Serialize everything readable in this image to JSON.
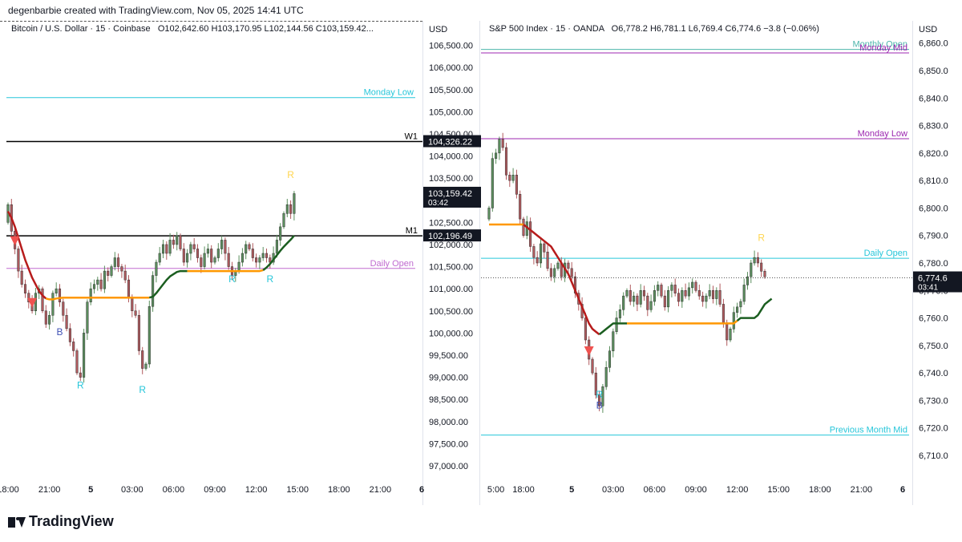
{
  "header": {
    "created_by": "degenbarbie created with TradingView.com, Nov 05, 2025 14:41 UTC"
  },
  "footer": {
    "brand": "TradingView"
  },
  "chart_data": [
    {
      "type": "candlestick",
      "title": "Bitcoin / U.S. Dollar · 15 · Coinbase",
      "ohlc_label": "O102,642.60 H103,170.95 L102,144.56 C103,159.42...",
      "currency": "USD",
      "ylim": [
        96800,
        106800
      ],
      "y_ticks": [
        97000,
        97500,
        98000,
        98500,
        99000,
        99500,
        100000,
        100500,
        101000,
        101500,
        102000,
        102500,
        103000,
        103500,
        104000,
        104500,
        105000,
        105500,
        106000,
        106500
      ],
      "y_tick_labels": [
        "97,000.00",
        "97,500.00",
        "98,000.00",
        "98,500.00",
        "99,000.00",
        "99,500.00",
        "100,000.00",
        "100,500.00",
        "101,000.00",
        "101,500.00",
        "102,000.00",
        "102,500.00",
        "103,000.00",
        "103,500.00",
        "104,000.00",
        "104,500.00",
        "105,000.00",
        "105,500.00",
        "106,000.00",
        "106,500.00"
      ],
      "x_labels": [
        "18:00",
        "21:00",
        "5",
        "03:00",
        "06:00",
        "09:00",
        "12:00",
        "15:00",
        "18:00",
        "21:00",
        "6"
      ],
      "x_label_positions": [
        0,
        12,
        24,
        36,
        48,
        60,
        72,
        84,
        96,
        108,
        120
      ],
      "n_slots": 122,
      "candles_end_slot": 84,
      "levels": [
        {
          "name": "Monday Low",
          "value": 105320,
          "color": "#26c6da"
        },
        {
          "name": "W1",
          "value": 104326.22,
          "color": "#000000"
        },
        {
          "name": "M1",
          "value": 102196.49,
          "color": "#000000"
        },
        {
          "name": "Daily Open",
          "value": 101460,
          "color": "#c06bd0"
        }
      ],
      "price_badges": [
        {
          "label": "104,326.22",
          "value": 104326.22
        },
        {
          "label": "103,159.42",
          "sub": "03:42",
          "value": 103159.42
        },
        {
          "label": "102,196.49",
          "value": 102196.49
        }
      ],
      "closes": [
        102900,
        102300,
        101900,
        101400,
        101100,
        100900,
        100700,
        100500,
        100900,
        101000,
        100500,
        100200,
        100400,
        100900,
        101000,
        100700,
        100400,
        100100,
        99800,
        99600,
        99100,
        99000,
        100000,
        100700,
        101000,
        101100,
        101200,
        101000,
        101400,
        101300,
        101500,
        101700,
        101500,
        101400,
        101200,
        100800,
        100500,
        100400,
        99600,
        99200,
        99300,
        100600,
        101300,
        101600,
        101800,
        102000,
        101800,
        102100,
        102000,
        102200,
        101900,
        101600,
        101800,
        102000,
        101900,
        101700,
        101500,
        101800,
        101900,
        101600,
        101700,
        101900,
        102100,
        101800,
        101500,
        101300,
        101400,
        101600,
        101800,
        102000,
        101900,
        101700,
        101600,
        101700,
        101800,
        101700,
        101600,
        101800,
        102100,
        102400,
        102700,
        102900,
        102700,
        103150
      ],
      "open_first": 102500,
      "trend_line": [
        102750,
        102600,
        102400,
        102150,
        101900,
        101650,
        101450,
        101250,
        101100,
        100950,
        100850,
        100780,
        100760,
        100760,
        100780,
        100790,
        100800,
        100800,
        100800,
        100800,
        100800,
        100800,
        100800,
        100800,
        100800,
        100800,
        100800,
        100800,
        100800,
        100800,
        100800,
        100800,
        100800,
        100800,
        100800,
        100800,
        100800,
        100800,
        100800,
        100800,
        100800,
        100800,
        100820,
        100900,
        101000,
        101100,
        101200,
        101280,
        101330,
        101380,
        101400,
        101400,
        101400,
        101400,
        101400,
        101400,
        101400,
        101400,
        101400,
        101400,
        101400,
        101400,
        101400,
        101400,
        101400,
        101400,
        101400,
        101400,
        101400,
        101400,
        101400,
        101400,
        101400,
        101400,
        101420,
        101480,
        101560,
        101660,
        101760,
        101860,
        101950,
        102030,
        102110,
        102200
      ],
      "trend_colors": [
        [
          0,
          11,
          "#b71c1c"
        ],
        [
          11,
          41,
          "#ff9800"
        ],
        [
          41,
          52,
          "#1b5e20"
        ],
        [
          52,
          74,
          "#ff9800"
        ],
        [
          74,
          84,
          "#1b5e20"
        ]
      ],
      "markers": [
        {
          "slot": 2,
          "type": "sell-arrow"
        },
        {
          "slot": 7,
          "type": "sell-arrow"
        },
        {
          "slot": 15,
          "label": "B",
          "price": 99950,
          "color": "#3f51b5"
        },
        {
          "slot": 21,
          "label": "R",
          "price": 98750,
          "color": "#26c6da"
        },
        {
          "slot": 39,
          "label": "R",
          "price": 98650,
          "color": "#26c6da"
        },
        {
          "slot": 65,
          "label": "R",
          "price": 101150,
          "color": "#26c6da"
        },
        {
          "slot": 76,
          "label": "R",
          "price": 101150,
          "color": "#26c6da"
        },
        {
          "slot": 82,
          "label": "R",
          "price": 103500,
          "color": "#ffd54f"
        }
      ]
    },
    {
      "type": "candlestick",
      "title": "S&P 500 Index · 15 · OANDA",
      "ohlc_label": "O6,778.2 H6,781.1 L6,769.4 C6,774.6 −3.8 (−0.06%)",
      "currency": "USD",
      "ylim": [
        6703,
        6864
      ],
      "y_ticks": [
        6710,
        6720,
        6730,
        6740,
        6750,
        6760,
        6770,
        6780,
        6790,
        6800,
        6810,
        6820,
        6830,
        6840,
        6850,
        6860
      ],
      "y_tick_labels": [
        "6,710.0",
        "6,720.0",
        "6,730.0",
        "6,740.0",
        "6,750.0",
        "6,760.0",
        "6,770.0",
        "6,780.0",
        "6,790.0",
        "6,800.0",
        "6,810.0",
        "6,820.0",
        "6,830.0",
        "6,840.0",
        "6,850.0",
        "6,860.0"
      ],
      "x_labels": [
        "5:00",
        "18:00",
        "5",
        "03:00",
        "06:00",
        "09:00",
        "12:00",
        "15:00",
        "18:00",
        "21:00",
        "6"
      ],
      "x_label_positions": [
        2,
        10,
        24,
        36,
        48,
        60,
        72,
        84,
        96,
        108,
        120
      ],
      "n_slots": 122,
      "candles_end_slot": 83,
      "levels": [
        {
          "name": "Monthly Open",
          "value": 6857.7,
          "color": "#4db6ac"
        },
        {
          "name": "Monday Mid",
          "value": 6856.4,
          "color": "#9c27b0"
        },
        {
          "name": "Monday Low",
          "value": 6825.2,
          "color": "#9c27b0"
        },
        {
          "name": "Daily Open",
          "value": 6781.7,
          "color": "#26c6da"
        },
        {
          "name": "Previous Month Mid",
          "value": 6717.4,
          "color": "#26c6da"
        }
      ],
      "price_badges": [
        {
          "label": "6,774.6",
          "sub": "03:41",
          "value": 6774.6
        }
      ],
      "closes": [
        6800,
        6818,
        6820,
        6825,
        6822,
        6812,
        6810,
        6812,
        6805,
        6796,
        6790,
        6795,
        6786,
        6782,
        6780,
        6787,
        6784,
        6778,
        6775,
        6778,
        6780,
        6775,
        6780,
        6778,
        6775,
        6769,
        6765,
        6760,
        6752,
        6745,
        6740,
        6732,
        6728,
        6735,
        6742,
        6748,
        6755,
        6760,
        6763,
        6768,
        6770,
        6766,
        6768,
        6765,
        6770,
        6768,
        6763,
        6766,
        6770,
        6772,
        6768,
        6764,
        6770,
        6772,
        6769,
        6766,
        6770,
        6768,
        6771,
        6773,
        6770,
        6768,
        6766,
        6768,
        6770,
        6767,
        6770,
        6765,
        6758,
        6752,
        6756,
        6762,
        6764,
        6766,
        6772,
        6775,
        6780,
        6782,
        6780,
        6777,
        6775
      ],
      "open_first": 6796,
      "trend_line": [
        6794,
        6794,
        6794,
        6794,
        6794,
        6794,
        6794,
        6794,
        6794,
        6794,
        6794,
        6793,
        6792,
        6791,
        6790,
        6789,
        6788,
        6787,
        6786,
        6784,
        6782,
        6780,
        6778,
        6776,
        6773,
        6770,
        6767,
        6764,
        6761,
        6758,
        6756,
        6755,
        6754,
        6755,
        6756,
        6757,
        6758,
        6758,
        6758,
        6758,
        6758,
        6758,
        6758,
        6758,
        6758,
        6758,
        6758,
        6758,
        6758,
        6758,
        6758,
        6758,
        6758,
        6758,
        6758,
        6758,
        6758,
        6758,
        6758,
        6758,
        6758,
        6758,
        6758,
        6758,
        6758,
        6758,
        6758,
        6758,
        6758,
        6758,
        6758,
        6758,
        6759,
        6760,
        6760,
        6760,
        6760,
        6760,
        6761,
        6763,
        6765,
        6766,
        6767
      ],
      "trend_colors": [
        [
          0,
          10,
          "#ff9800"
        ],
        [
          10,
          32,
          "#b71c1c"
        ],
        [
          32,
          40,
          "#1b5e20"
        ],
        [
          40,
          72,
          "#ff9800"
        ],
        [
          72,
          83,
          "#1b5e20"
        ]
      ],
      "markers": [
        {
          "slot": 29,
          "type": "sell-arrow"
        },
        {
          "slot": 32,
          "label": "R",
          "price": 6731,
          "color": "#26c6da"
        },
        {
          "slot": 32,
          "label": "B",
          "price": 6727,
          "color": "#3f51b5"
        },
        {
          "slot": 79,
          "label": "R",
          "price": 6788,
          "color": "#ffd54f"
        }
      ]
    }
  ]
}
